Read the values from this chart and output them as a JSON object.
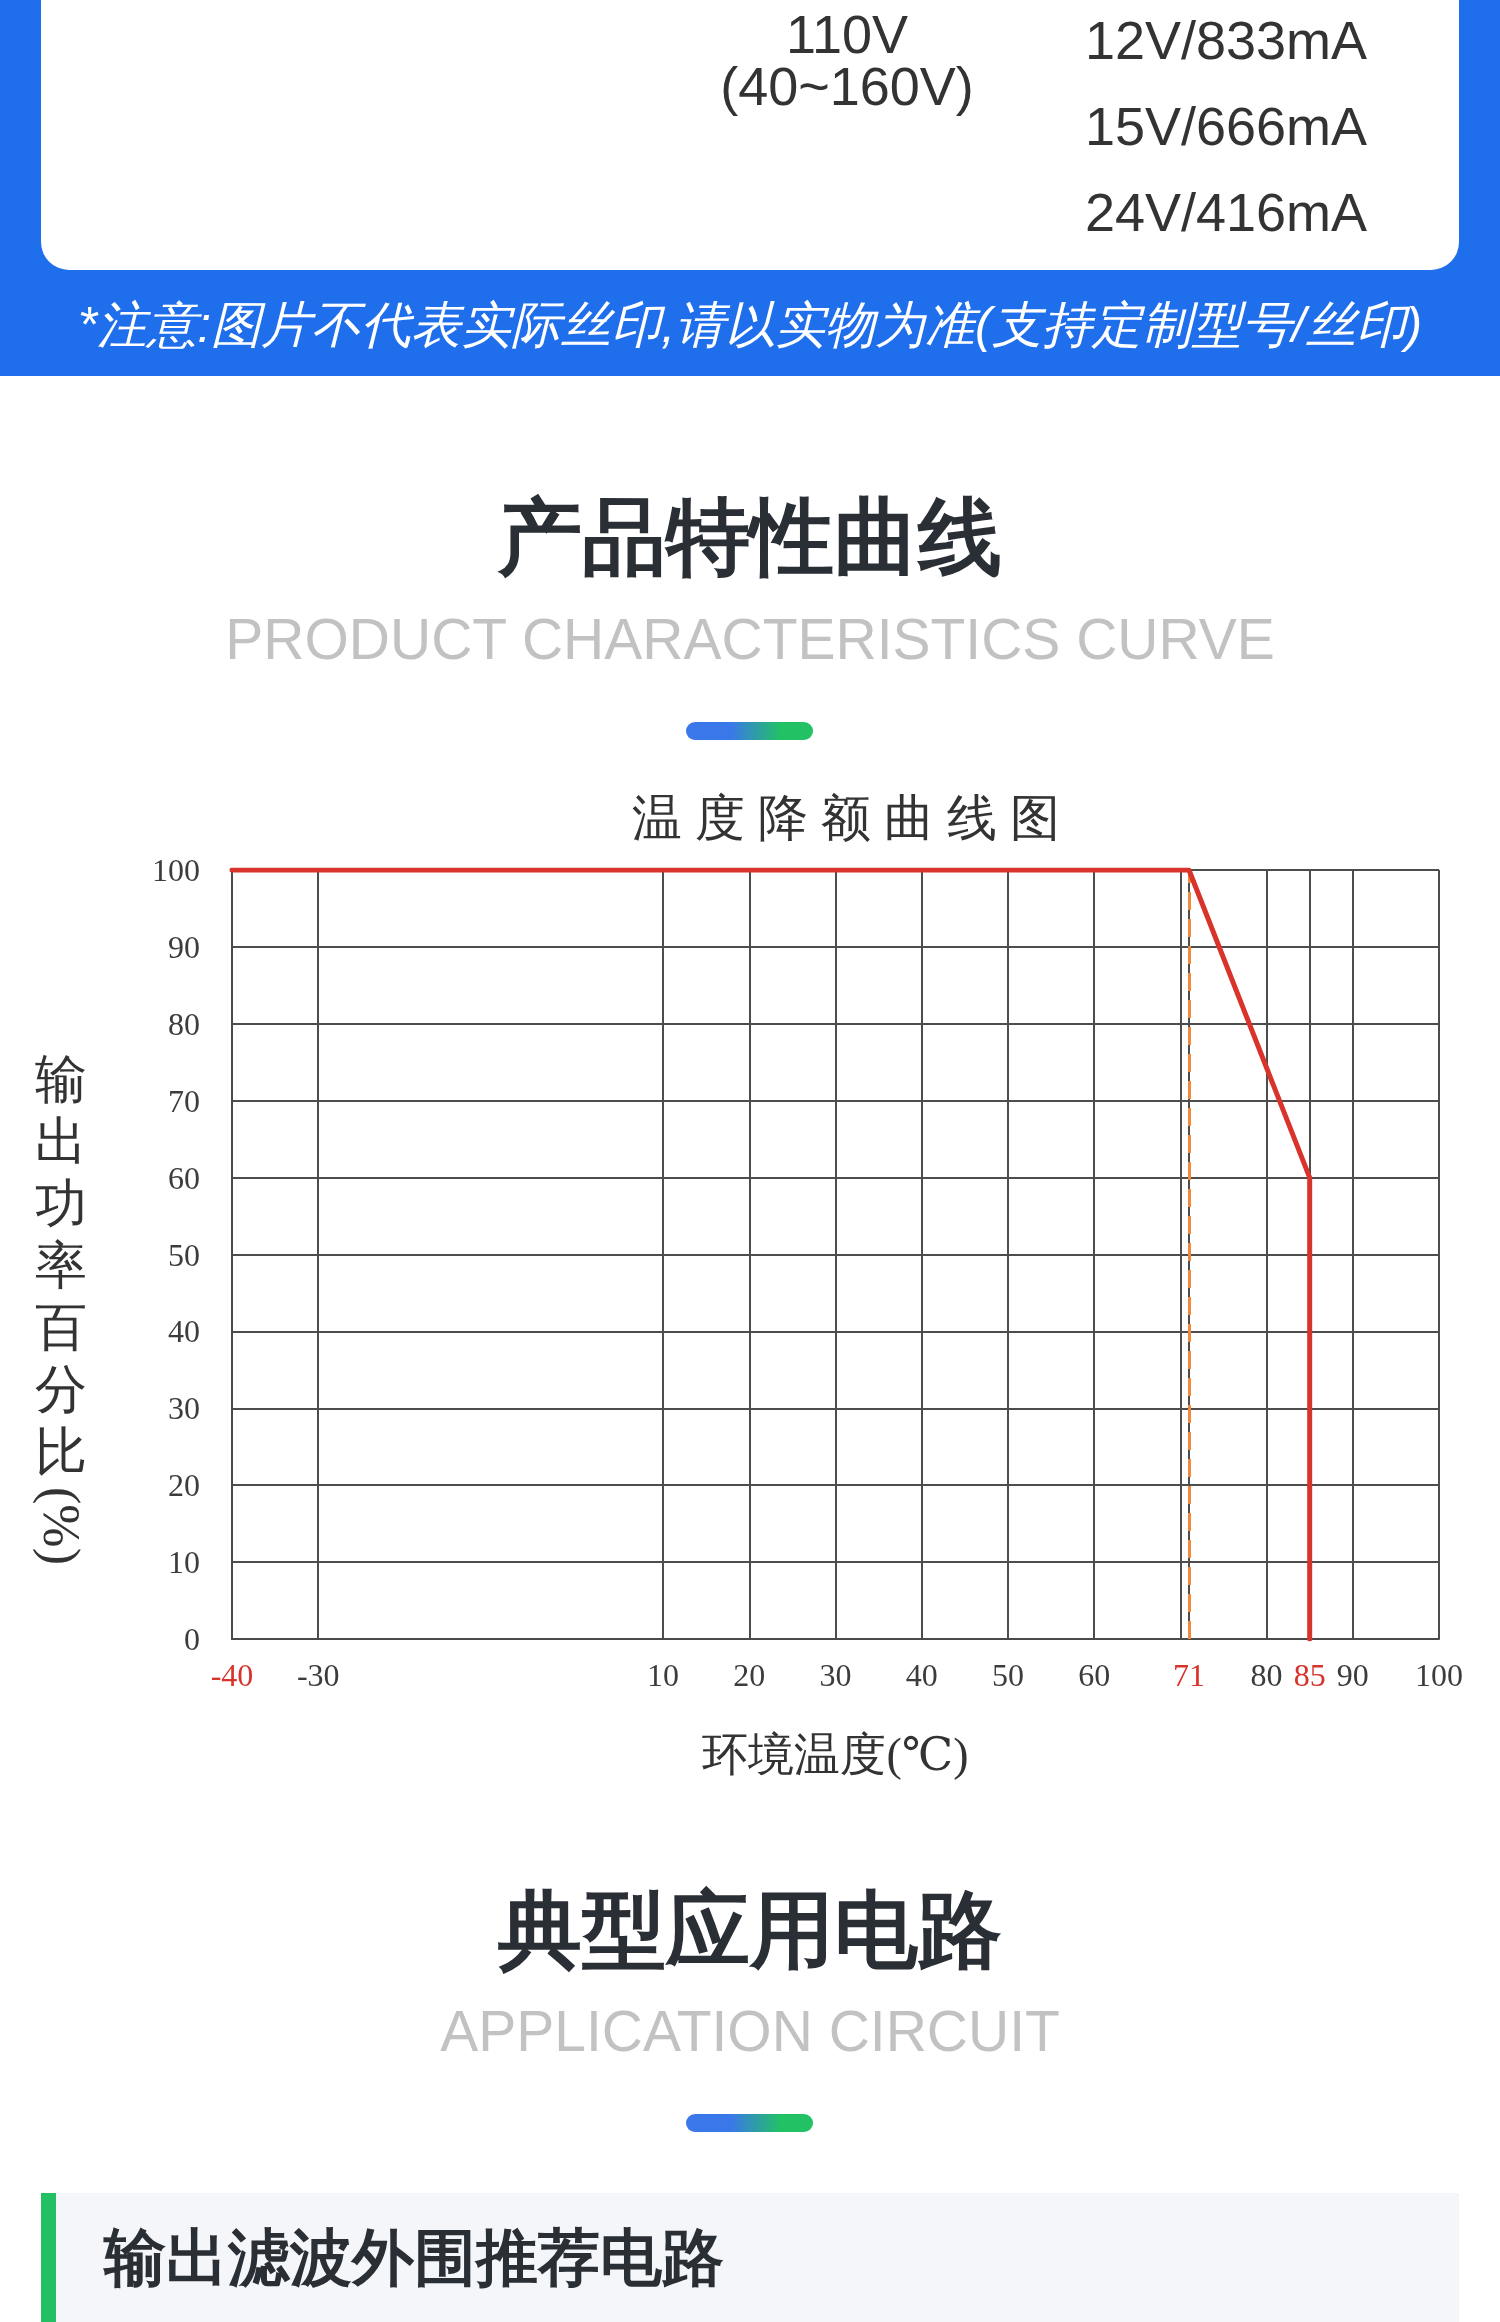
{
  "chart_data": {
    "type": "line",
    "title": "温度降额曲线图",
    "xlabel": "环境温度(℃)",
    "ylabel": "输出功率百分比(%)",
    "x": [
      -40,
      71,
      85,
      85
    ],
    "series": [
      {
        "color": "#d8342c",
        "values": [
          100,
          100,
          60,
          0
        ]
      }
    ],
    "xlim": [
      -40,
      100
    ],
    "xticks": [
      -40,
      -30,
      10,
      20,
      30,
      40,
      50,
      60,
      {
        "value": 70,
        "label": null
      },
      71,
      80,
      85,
      90,
      100
    ],
    "ylim": [
      0,
      100
    ],
    "yticks": [
      0,
      10,
      20,
      30,
      40,
      50,
      60,
      70,
      80,
      90,
      100
    ],
    "grid": true,
    "marker": "none",
    "line_style": "solid",
    "ref_lines": [
      {
        "axis": "x",
        "value": 71,
        "color": "#f08a3c",
        "line_style": "dashed"
      }
    ],
    "annotations": [
      "110V",
      "(40~160V)",
      "12V/833mA",
      "15V/666mA",
      "24V/416mA",
      "*注意:图片不代表实际丝印,请以实物为准(支持定制型号/丝印)",
      "产品特性曲线",
      "PRODUCT CHARACTERISTICS CURVE",
      "典型应用电路",
      "APPLICATION CIRCUIT",
      "输出滤波外围推荐电路"
    ]
  }
}
